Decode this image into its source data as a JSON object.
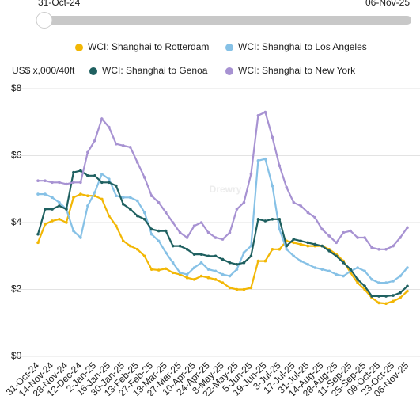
{
  "slider": {
    "start": "31-Oct-24",
    "end": "06-Nov-25"
  },
  "chart_data": {
    "type": "line",
    "y_label": "US$ x,000/40ft",
    "watermark": "Drewry",
    "categories": [
      "31-Oct-24",
      null,
      "14-Nov-24",
      null,
      "28-Nov-24",
      null,
      "12-Dec-24",
      null,
      "2-Jan-25",
      null,
      "16-Jan-25",
      null,
      "30-Jan-25",
      null,
      "13-Feb-25",
      null,
      "27-Feb-25",
      null,
      "13-Mar-25",
      null,
      "27-Mar-25",
      null,
      "10-Apr-25",
      null,
      "24-Apr-25",
      null,
      "8-May-25",
      null,
      "22-May-25",
      null,
      "5-Jun-25",
      null,
      "19-Jun-25",
      null,
      "3-Jul-25",
      null,
      "17-Jul-25",
      null,
      "31-Jul-25",
      null,
      "14-Aug-25",
      null,
      "28-Aug-25",
      null,
      "11-Sep-25",
      null,
      "25-Sep-25",
      null,
      "09-Oct-25",
      null,
      "23-Oct-25",
      null,
      "06-Nov-25"
    ],
    "series": [
      {
        "name": "WCI: Shanghai to Rotterdam",
        "color": "#f2b705",
        "values": [
          3.4,
          3.95,
          4.05,
          4.1,
          4.0,
          4.75,
          4.85,
          4.8,
          4.8,
          4.7,
          4.2,
          3.9,
          3.45,
          3.3,
          3.2,
          3.0,
          2.6,
          2.58,
          2.62,
          2.5,
          2.45,
          2.35,
          2.3,
          2.4,
          2.35,
          2.3,
          2.2,
          2.05,
          2.0,
          2.0,
          2.05,
          2.85,
          2.85,
          3.2,
          3.2,
          3.45,
          3.4,
          3.35,
          3.3,
          3.3,
          3.3,
          3.2,
          3.05,
          2.85,
          2.5,
          2.2,
          2.0,
          1.75,
          1.6,
          1.58,
          1.65,
          1.75,
          1.95
        ]
      },
      {
        "name": "WCI: Shanghai to Los Angeles",
        "color": "#86c1e6",
        "values": [
          4.85,
          4.85,
          4.75,
          4.6,
          4.4,
          3.75,
          3.55,
          4.5,
          4.9,
          5.45,
          5.3,
          4.8,
          4.75,
          4.75,
          4.65,
          4.3,
          3.65,
          3.45,
          3.1,
          2.8,
          2.5,
          2.45,
          2.65,
          2.8,
          2.6,
          2.55,
          2.45,
          2.4,
          2.6,
          3.1,
          3.3,
          5.85,
          5.9,
          5.1,
          3.8,
          3.2,
          3.0,
          2.85,
          2.75,
          2.65,
          2.6,
          2.55,
          2.45,
          2.4,
          2.55,
          2.65,
          2.55,
          2.3,
          2.2,
          2.2,
          2.25,
          2.4,
          2.65
        ]
      },
      {
        "name": "WCI: Shanghai to Genoa",
        "color": "#1f6060",
        "values": [
          3.65,
          4.4,
          4.4,
          4.5,
          4.4,
          5.5,
          5.55,
          5.4,
          5.4,
          5.2,
          5.2,
          5.1,
          4.55,
          4.4,
          4.2,
          4.1,
          3.8,
          3.75,
          3.75,
          3.3,
          3.3,
          3.2,
          3.05,
          3.05,
          3.0,
          3.0,
          2.9,
          2.8,
          2.75,
          2.8,
          3.0,
          4.1,
          4.05,
          4.1,
          4.1,
          3.3,
          3.5,
          3.45,
          3.4,
          3.35,
          3.3,
          3.15,
          3.0,
          2.8,
          2.6,
          2.3,
          2.1,
          1.8,
          1.8,
          1.8,
          1.82,
          1.9,
          2.1
        ]
      },
      {
        "name": "WCI: Shanghai to New York",
        "color": "#a792d2",
        "values": [
          5.25,
          5.25,
          5.2,
          5.2,
          5.15,
          5.2,
          5.2,
          6.1,
          6.45,
          7.1,
          6.85,
          6.35,
          6.3,
          6.25,
          5.8,
          5.35,
          4.8,
          4.6,
          4.3,
          4.0,
          3.7,
          3.55,
          3.9,
          4.0,
          3.7,
          3.55,
          3.5,
          3.7,
          4.4,
          4.6,
          5.45,
          7.2,
          7.3,
          6.55,
          5.7,
          5.05,
          4.6,
          4.5,
          4.3,
          4.15,
          3.8,
          3.6,
          3.4,
          3.7,
          3.75,
          3.55,
          3.55,
          3.25,
          3.2,
          3.2,
          3.3,
          3.55,
          3.85
        ]
      }
    ],
    "ylim": [
      0,
      8
    ],
    "yticks": [
      {
        "value": 0,
        "label": "$0"
      },
      {
        "value": 2,
        "label": "$2"
      },
      {
        "value": 4,
        "label": "$4"
      },
      {
        "value": 6,
        "label": "$6"
      },
      {
        "value": 8,
        "label": "$8"
      }
    ],
    "grid": true
  }
}
